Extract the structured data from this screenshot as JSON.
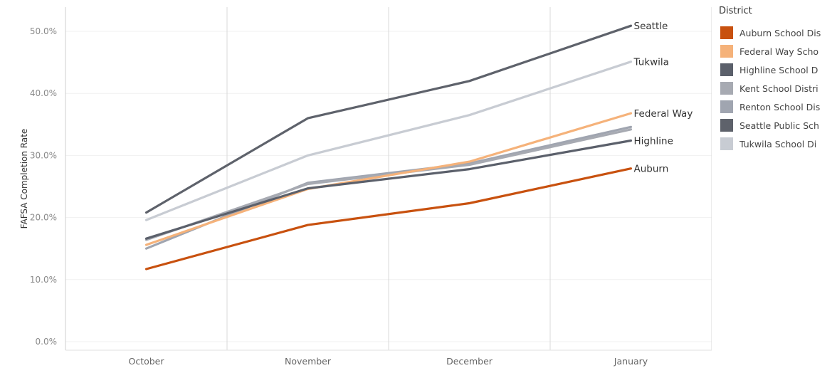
{
  "chart_data": {
    "type": "line",
    "title": "",
    "xlabel": "",
    "ylabel": "FAFSA Completion Rate",
    "categories": [
      "October",
      "November",
      "December",
      "January"
    ],
    "ylim": [
      0,
      53
    ],
    "yticks": [
      {
        "value": 0,
        "label": "0.0%"
      },
      {
        "value": 10,
        "label": "10.0%"
      },
      {
        "value": 20,
        "label": "20.0%"
      },
      {
        "value": 30,
        "label": "30.0%"
      },
      {
        "value": 40,
        "label": "40.0%"
      },
      {
        "value": 50,
        "label": "50.0%"
      }
    ],
    "grid": true,
    "legend": {
      "title": "District",
      "position": "right"
    },
    "series": [
      {
        "name": "Auburn School Dis",
        "end_label": "Auburn",
        "color": "#c8510f",
        "values": [
          11.7,
          18.8,
          22.3,
          27.9
        ]
      },
      {
        "name": "Federal Way Scho",
        "end_label": "Federal Way",
        "color": "#f5b27a",
        "values": [
          15.6,
          24.6,
          29.0,
          36.8
        ]
      },
      {
        "name": "Highline School D",
        "end_label": "Highline",
        "color": "#5b606b",
        "values": [
          16.6,
          24.7,
          27.8,
          32.4
        ]
      },
      {
        "name": "Kent School Distri",
        "end_label": "",
        "color": "#a7aab2",
        "values": [
          16.4,
          25.4,
          28.5,
          34.2
        ]
      },
      {
        "name": "Renton School Dis",
        "end_label": "",
        "color": "#a0a5b0",
        "values": [
          15.0,
          25.6,
          28.7,
          34.6
        ]
      },
      {
        "name": "Seattle Public Sch",
        "end_label": "Seattle",
        "color": "#5e626b",
        "values": [
          20.8,
          36.0,
          42.0,
          50.9
        ]
      },
      {
        "name": "Tukwila School Di",
        "end_label": "Tukwila",
        "color": "#c8ccd3",
        "values": [
          19.6,
          30.0,
          36.5,
          45.1
        ]
      }
    ]
  }
}
